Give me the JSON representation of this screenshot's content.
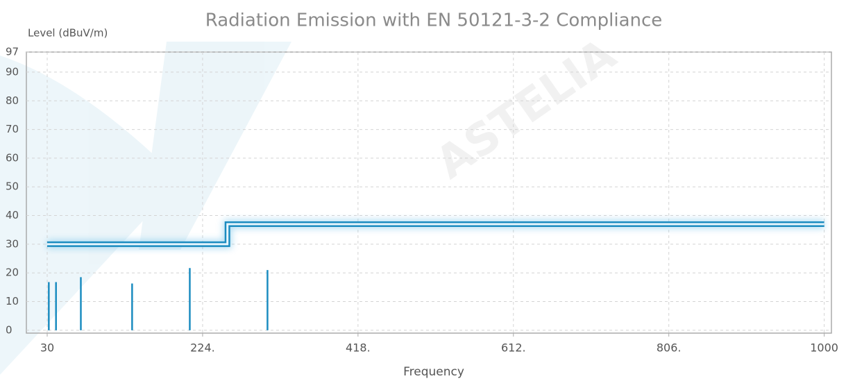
{
  "chart_data": {
    "type": "line",
    "title": "Radiation Emission with EN 50121-3-2 Compliance",
    "y_label": "Level (dBuV/m)",
    "x_label": "Frequency",
    "watermark": "ASTELIA",
    "series": [
      {
        "type": "line",
        "color": "#1b8cc0",
        "x": [
          30,
          255,
          255,
          1000
        ],
        "values": [
          30,
          30,
          37,
          37
        ]
      },
      {
        "type": "stem",
        "color": "#1b8cc0",
        "x": [
          32,
          41,
          72,
          136,
          208,
          305
        ],
        "values": [
          16.8,
          16.8,
          18.5,
          16.3,
          21.7,
          21
        ]
      }
    ],
    "xlim": [
      4,
      1009
    ],
    "ylim": [
      -1,
      97
    ],
    "xticks": [
      30,
      {
        "value": 224,
        "label": "224."
      },
      {
        "value": 418,
        "label": "418."
      },
      {
        "value": 612,
        "label": "612."
      },
      {
        "value": 806,
        "label": "806."
      },
      1000
    ],
    "yticks": [
      0,
      10,
      20,
      30,
      40,
      50,
      60,
      70,
      80,
      90,
      97
    ],
    "grid": true
  }
}
